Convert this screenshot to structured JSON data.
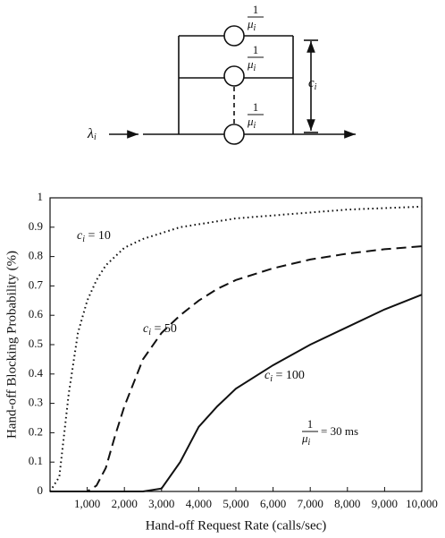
{
  "diagram": {
    "server_labels": [
      {
        "numerator": "1",
        "var": "μ",
        "sub": "i"
      },
      {
        "numerator": "1",
        "var": "μ",
        "sub": "i"
      },
      {
        "numerator": "1",
        "var": "μ",
        "sub": "i"
      }
    ],
    "capacity": {
      "var": "c",
      "sub": "i"
    },
    "arrival": {
      "var": "λ",
      "sub": "i"
    }
  },
  "chart_data": {
    "type": "line",
    "xlabel": "Hand-off Request Rate (calls/sec)",
    "ylabel": "Hand-off Blocking Probability (%)",
    "x": [
      0,
      250,
      500,
      750,
      1000,
      1250,
      1500,
      1750,
      2000,
      2500,
      3000,
      3500,
      4000,
      4500,
      5000,
      6000,
      7000,
      8000,
      9000,
      10000
    ],
    "series": [
      {
        "color": "#111111",
        "dash": "dotted",
        "label": {
          "var": "c",
          "sub": "i",
          "text": " = 10"
        },
        "values": [
          0,
          0.05,
          0.33,
          0.54,
          0.65,
          0.72,
          0.77,
          0.8,
          0.83,
          0.86,
          0.88,
          0.9,
          0.91,
          0.92,
          0.93,
          0.94,
          0.95,
          0.96,
          0.965,
          0.97
        ]
      },
      {
        "color": "#111111",
        "dash": "dashed",
        "label": {
          "var": "c",
          "sub": "i",
          "text": " = 50"
        },
        "values": [
          0,
          0,
          0,
          0,
          0,
          0.02,
          0.08,
          0.19,
          0.29,
          0.45,
          0.54,
          0.6,
          0.65,
          0.69,
          0.72,
          0.76,
          0.79,
          0.81,
          0.825,
          0.835
        ]
      },
      {
        "color": "#111111",
        "dash": "solid",
        "label": {
          "var": "c",
          "sub": "i",
          "text": " = 100"
        },
        "values": [
          0,
          0,
          0,
          0,
          0,
          0,
          0,
          0,
          0,
          0,
          0.01,
          0.1,
          0.22,
          0.29,
          0.35,
          0.43,
          0.5,
          0.56,
          0.62,
          0.67
        ]
      }
    ],
    "annotation": {
      "numerator": "1",
      "var": "μ",
      "sub": "i",
      "text": " = 30 ms"
    },
    "xlim": [
      0,
      10000
    ],
    "xticks": [
      {
        "value": 1000,
        "label": "1,000"
      },
      {
        "value": 2000,
        "label": "2,000"
      },
      {
        "value": 3000,
        "label": "3,000"
      },
      {
        "value": 4000,
        "label": "4,000"
      },
      {
        "value": 5000,
        "label": "5,000"
      },
      {
        "value": 6000,
        "label": "6,000"
      },
      {
        "value": 7000,
        "label": "7,000"
      },
      {
        "value": 8000,
        "label": "8,000"
      },
      {
        "value": 9000,
        "label": "9,000"
      },
      {
        "value": 10000,
        "label": "10,000"
      }
    ],
    "ylim": [
      0,
      1
    ],
    "yticks": [
      0,
      0.1,
      0.2,
      0.3,
      0.4,
      0.5,
      0.6,
      0.7,
      0.8,
      0.9,
      1
    ]
  }
}
